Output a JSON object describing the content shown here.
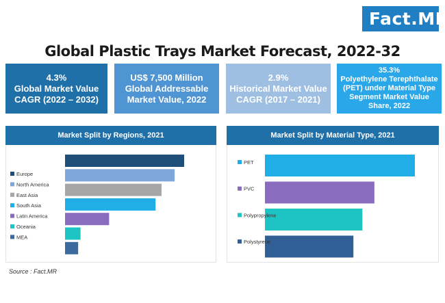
{
  "logo": {
    "text": "Fact",
    "dot": ".",
    "suffix": "MR"
  },
  "title": "Global Plastic Trays Market Forecast, 2022-32",
  "stats": [
    {
      "value": "4.3%",
      "desc": "Global Market Value CAGR (2022 – 2032)"
    },
    {
      "value": "US$ 7,500 Million",
      "desc": "Global Addressable Market Value, 2022"
    },
    {
      "value": "2.9%",
      "desc": "Historical Market Value CAGR (2017 – 2021)"
    },
    {
      "value": "35.3%",
      "desc": "Polyethylene Terephthalate (PET) under Material Type Segment Market Value Share, 2022"
    }
  ],
  "source": "Source : Fact.MR",
  "chart_data": [
    {
      "type": "bar",
      "orientation": "horizontal",
      "title": "Market Split by Regions, 2021",
      "categories": [
        "Europe",
        "North America",
        "East Asia",
        "South Asia",
        "Latin America",
        "Oceania",
        "MEA"
      ],
      "values": [
        100,
        92,
        81,
        76,
        37,
        13,
        11
      ],
      "colors": [
        "#1f4e79",
        "#7fa7d9",
        "#a6a6a6",
        "#21aee6",
        "#8a6cbf",
        "#1ec3c3",
        "#3a6a9e"
      ],
      "legend_position": "left",
      "grid": false
    },
    {
      "type": "bar",
      "orientation": "horizontal",
      "title": "Market Split by Material Type, 2021",
      "categories": [
        "PET",
        "PVC",
        "Polypropylene",
        "Polystyrene"
      ],
      "values": [
        100,
        73,
        65,
        59
      ],
      "colors": [
        "#21aee6",
        "#8a6cbf",
        "#1ec3c3",
        "#2f5f94"
      ],
      "legend_position": "left",
      "grid": false
    }
  ]
}
